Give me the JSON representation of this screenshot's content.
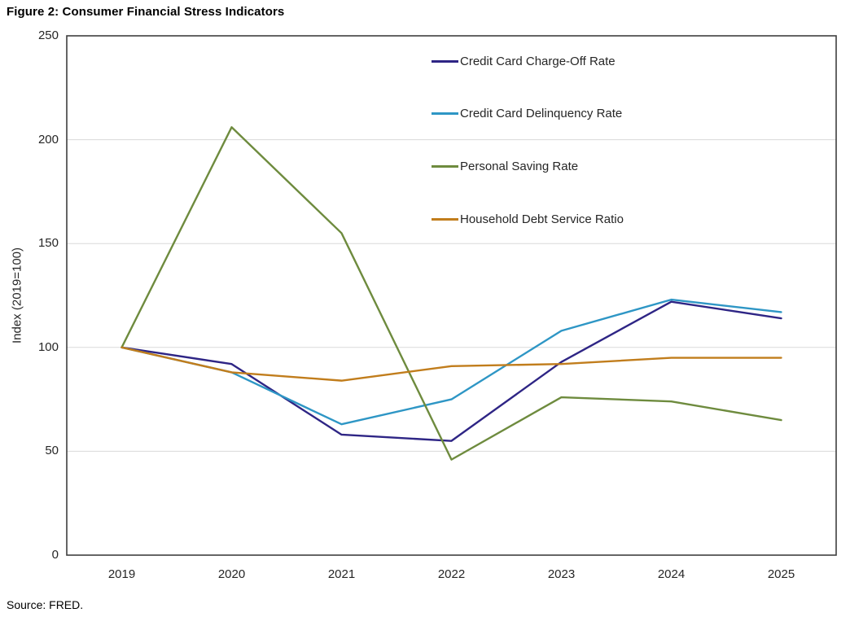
{
  "title": "Figure 2: Consumer Financial Stress Indicators",
  "source": "Source: FRED.",
  "chart_data": {
    "type": "line",
    "x": [
      "2019",
      "2020",
      "2021",
      "2022",
      "2023",
      "2024",
      "2025"
    ],
    "series": [
      {
        "name": "Credit Card Charge-Off Rate",
        "color": "#2E2585",
        "values": [
          100,
          92,
          58,
          55,
          93,
          122,
          114
        ]
      },
      {
        "name": "Credit Card Delinquency Rate",
        "color": "#2E96C5",
        "values": [
          100,
          88,
          63,
          75,
          108,
          123,
          117
        ]
      },
      {
        "name": "Personal Saving Rate",
        "color": "#6E8B3E",
        "values": [
          100,
          206,
          155,
          46,
          76,
          74,
          65
        ]
      },
      {
        "name": "Household Debt Service Ratio",
        "color": "#C17D1C",
        "values": [
          100,
          88,
          84,
          91,
          92,
          95,
          95
        ]
      }
    ],
    "xlabel": "",
    "ylabel": "Index (2019=100)",
    "ylim": [
      0,
      250
    ],
    "yticks": [
      0,
      50,
      100,
      150,
      200,
      250
    ],
    "grid": "horizontal",
    "legend_position": "inside-top-center-right",
    "gridline_color": "#DADADA",
    "plot_border_color": "#3F3F3F"
  }
}
